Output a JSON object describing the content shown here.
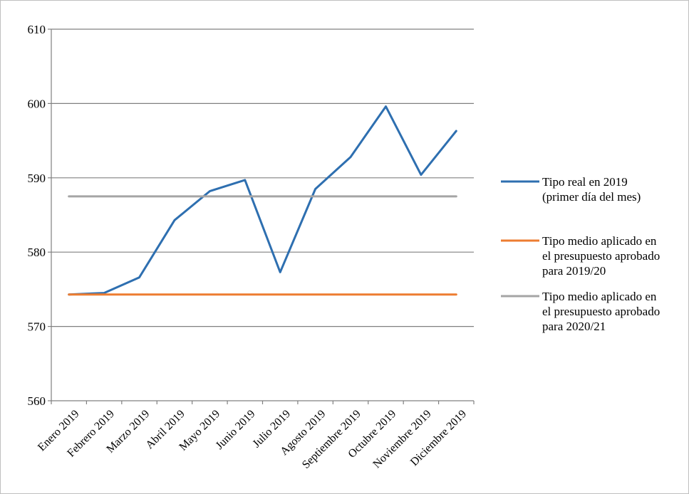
{
  "chart_data": {
    "type": "line",
    "categories": [
      "Enero 2019",
      "Febrero 2019",
      "Marzo 2019",
      "Abril 2019",
      "Mayo 2019",
      "Junio 2019",
      "Julio 2019",
      "Agosto 2019",
      "Septiembre 2019",
      "Octubre 2019",
      "Noviembre 2019",
      "Diciembre 2019"
    ],
    "ylim": [
      560,
      610
    ],
    "yticks": [
      560,
      570,
      580,
      590,
      600,
      610
    ],
    "grid": true,
    "legend_position": "right",
    "series": [
      {
        "name_lines": [
          "Tipo real en 2019",
          "(primer día del mes)"
        ],
        "color": "#2e6fb0",
        "values": [
          574.3,
          574.5,
          576.6,
          584.3,
          588.2,
          589.7,
          577.3,
          588.5,
          592.8,
          599.6,
          590.4,
          596.3
        ]
      },
      {
        "name_lines": [
          "Tipo medio aplicado en",
          "el presupuesto aprobado",
          "para 2019/20"
        ],
        "color": "#ed7d31",
        "values": [
          574.3,
          574.3,
          574.3,
          574.3,
          574.3,
          574.3,
          574.3,
          574.3,
          574.3,
          574.3,
          574.3,
          574.3
        ]
      },
      {
        "name_lines": [
          "Tipo medio aplicado en",
          "el presupuesto aprobado",
          "para 2020/21"
        ],
        "color": "#a5a5a5",
        "values": [
          587.5,
          587.5,
          587.5,
          587.5,
          587.5,
          587.5,
          587.5,
          587.5,
          587.5,
          587.5,
          587.5,
          587.5
        ]
      }
    ]
  }
}
